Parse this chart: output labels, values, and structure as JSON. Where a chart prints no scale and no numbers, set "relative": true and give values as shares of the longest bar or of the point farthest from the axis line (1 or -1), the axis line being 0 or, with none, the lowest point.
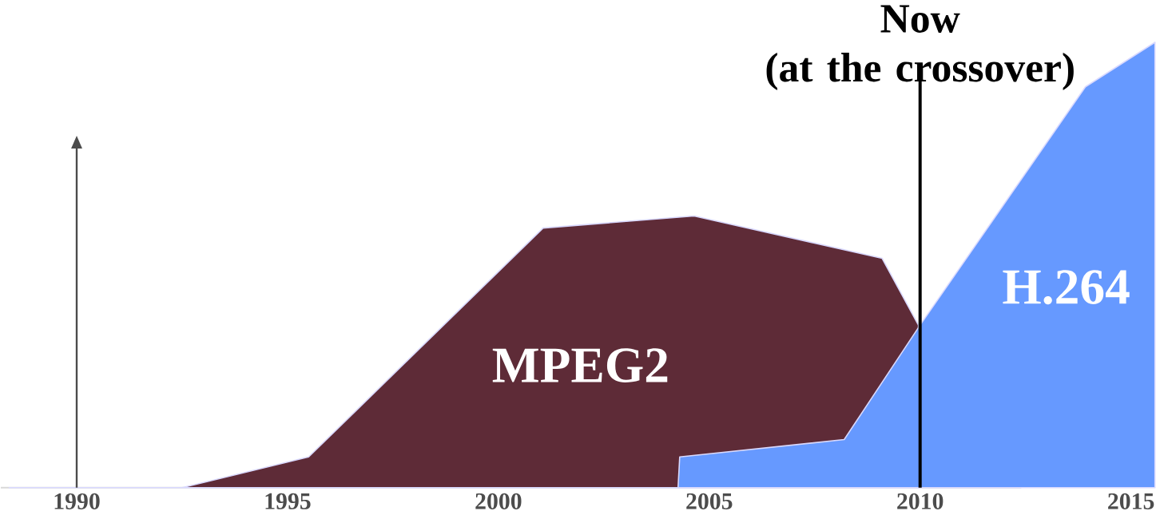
{
  "chart_data": {
    "type": "area",
    "relative": true,
    "xlim": [
      1988.2,
      2015.6
    ],
    "xticks": [
      1990,
      1995,
      2000,
      2005,
      2010,
      2015
    ],
    "legend": false,
    "grid": false,
    "series": [
      {
        "name": "MPEG2",
        "color": "#5e2b37",
        "x": [
          1988.4,
          1991.75,
          1992.5,
          1995.5,
          2001.06,
          2004.64,
          2009.1,
          2009.96
        ],
        "values": [
          0,
          0,
          0,
          0.069,
          0.583,
          0.61,
          0.515,
          0.365
        ]
      },
      {
        "name": "H.264",
        "color": "#6699ff",
        "x": [
          2004.26,
          2004.3,
          2008.2,
          2010,
          2013.92,
          2015.57
        ],
        "values": [
          0,
          0.069,
          0.108,
          0.365,
          0.9,
          1.0
        ]
      }
    ],
    "ref_lines": [
      {
        "axis": "x",
        "value": 2010,
        "label": "Now\n(at the crossover)",
        "color": "#000000"
      }
    ]
  }
}
